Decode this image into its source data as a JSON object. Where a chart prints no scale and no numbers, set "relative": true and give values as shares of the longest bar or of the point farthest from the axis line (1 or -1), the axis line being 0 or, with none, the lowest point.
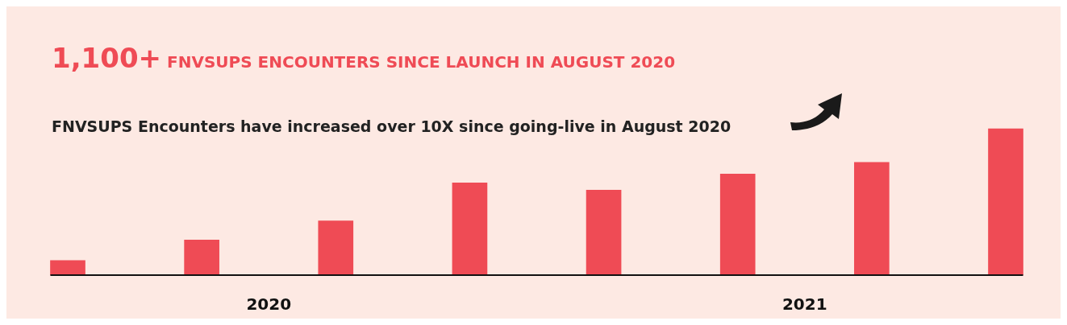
{
  "chart_data": {
    "type": "bar",
    "title": "1,100+ FNVSUPS ENCOUNTERS SINCE LAUNCH IN AUGUST 2020",
    "subtitle": "FNVSUPS Encounters have increased over 10X since going-live in August 2020",
    "categories": [
      null,
      null,
      null,
      null,
      null,
      null,
      null,
      null
    ],
    "values": [
      0.1,
      0.24,
      0.37,
      0.63,
      0.58,
      0.69,
      0.77,
      1
    ],
    "color": "#ef4b55",
    "relative": true,
    "legend": false,
    "annotations": [
      "2020",
      "2021"
    ]
  }
}
